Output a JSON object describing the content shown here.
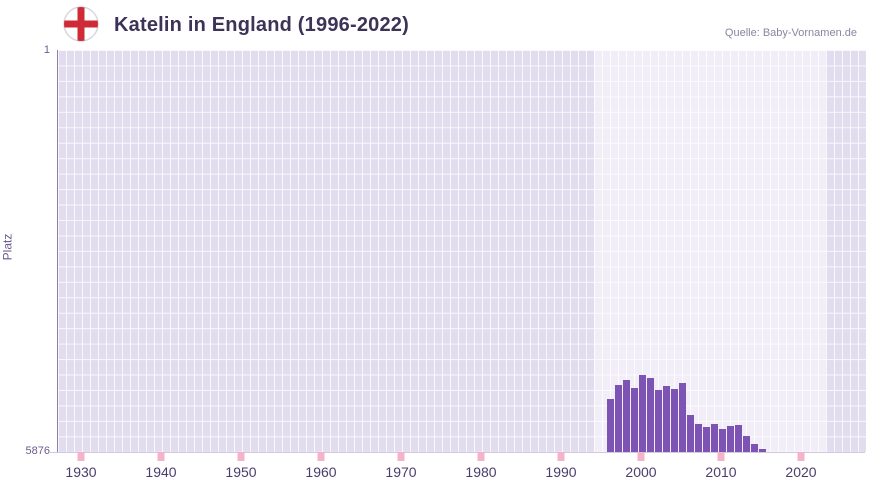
{
  "header": {
    "title": "Katelin in England (1996-2022)",
    "source": "Quelle: Baby-Vornamen.de",
    "flag_icon": "england-flag-icon"
  },
  "axes": {
    "y_label": "Platz",
    "y_top_label": "1",
    "y_bottom_label": "5876"
  },
  "chart_data": {
    "type": "bar",
    "title": "Katelin in England (1996-2022)",
    "xlabel": "",
    "ylabel": "Platz",
    "y_axis_inverted": true,
    "y_range": {
      "top": 1,
      "bottom": 5876
    },
    "x_domain": [
      1927,
      2028
    ],
    "x_tick_years": [
      1930,
      1940,
      1950,
      1960,
      1970,
      1980,
      1990,
      2000,
      2010,
      2020
    ],
    "highlight_span": {
      "start": 1994,
      "end": 2023
    },
    "bars": [
      {
        "year": 1996,
        "rank": 5100
      },
      {
        "year": 1997,
        "rank": 4890
      },
      {
        "year": 1998,
        "rank": 4820
      },
      {
        "year": 1999,
        "rank": 4940
      },
      {
        "year": 2000,
        "rank": 4750
      },
      {
        "year": 2001,
        "rank": 4790
      },
      {
        "year": 2002,
        "rank": 4970
      },
      {
        "year": 2003,
        "rank": 4910
      },
      {
        "year": 2004,
        "rank": 4950
      },
      {
        "year": 2005,
        "rank": 4860
      },
      {
        "year": 2006,
        "rank": 5340
      },
      {
        "year": 2007,
        "rank": 5470
      },
      {
        "year": 2008,
        "rank": 5510
      },
      {
        "year": 2009,
        "rank": 5470
      },
      {
        "year": 2010,
        "rank": 5540
      },
      {
        "year": 2011,
        "rank": 5500
      },
      {
        "year": 2012,
        "rank": 5480
      },
      {
        "year": 2013,
        "rank": 5640
      },
      {
        "year": 2014,
        "rank": 5760
      },
      {
        "year": 2015,
        "rank": 5830
      }
    ],
    "colors": {
      "bar": "#7d54b3",
      "plot_bg": "#e2dcef",
      "grid_line": "#ffffff",
      "highlight_overlay": "rgba(255,255,255,0.5)",
      "tick_pink": "#f3b4ca",
      "title_text": "#3c3356",
      "source_text": "#8b84a0",
      "axis_text": "#4b3c6b",
      "y_axis_text": "#6b5b8e",
      "flag_cross_red": "#ce2b37"
    }
  }
}
